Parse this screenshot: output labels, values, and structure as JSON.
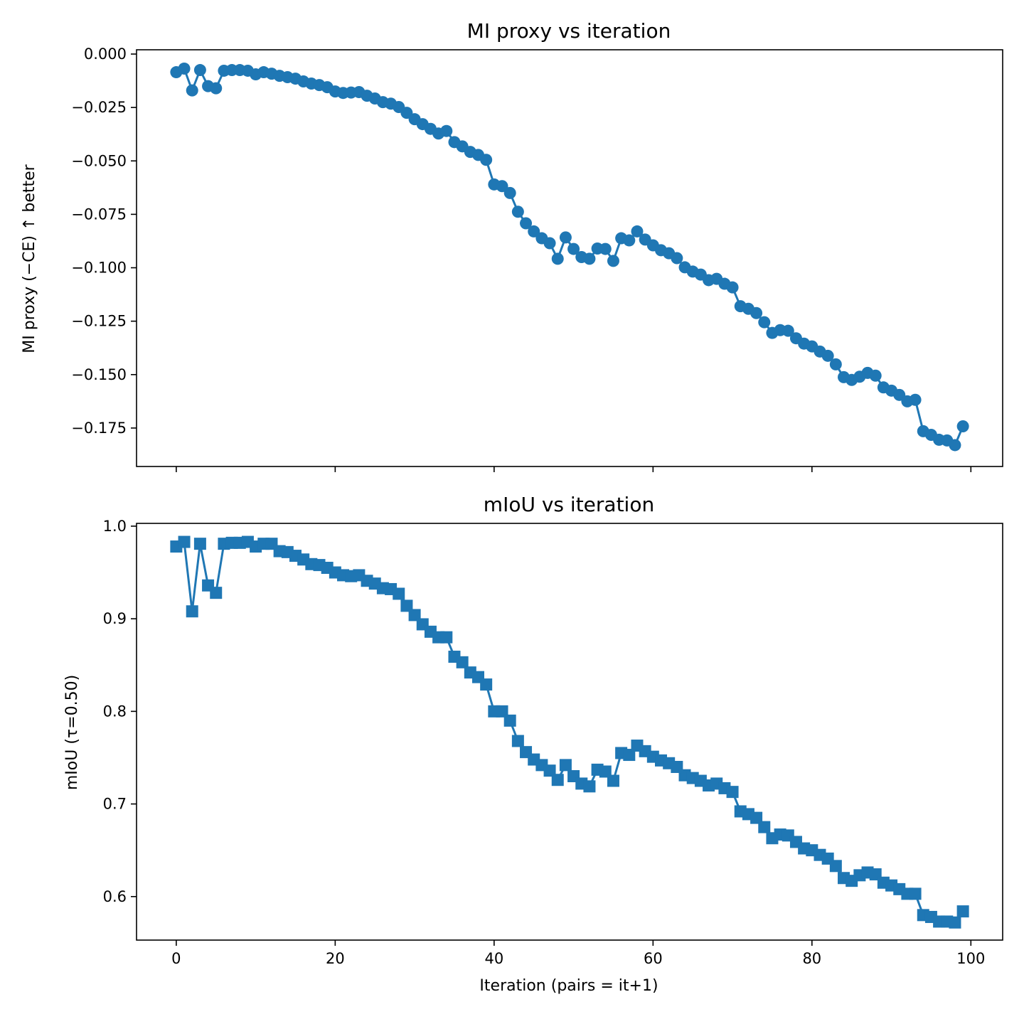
{
  "colors": {
    "series": "#1f77b4",
    "axes": "#000000",
    "background": "#ffffff"
  },
  "chart_data": [
    {
      "type": "line",
      "title": "MI proxy vs iteration",
      "xlabel": "",
      "ylabel": "MI proxy (−CE) ↑ better",
      "marker": "circle",
      "grid": false,
      "xlim": [
        -5,
        104
      ],
      "ylim": [
        -0.193,
        0.002
      ],
      "xticks": [
        0,
        20,
        40,
        60,
        80,
        100
      ],
      "xtick_labels_visible": false,
      "yticks": [
        0.0,
        -0.025,
        -0.05,
        -0.075,
        -0.1,
        -0.125,
        -0.15,
        -0.175
      ],
      "ytick_labels": [
        "0.000",
        "−0.025",
        "−0.050",
        "−0.075",
        "−0.100",
        "−0.125",
        "−0.150",
        "−0.175"
      ],
      "x": [
        0,
        1,
        2,
        3,
        4,
        5,
        6,
        7,
        8,
        9,
        10,
        11,
        12,
        13,
        14,
        15,
        16,
        17,
        18,
        19,
        20,
        21,
        22,
        23,
        24,
        25,
        26,
        27,
        28,
        29,
        30,
        31,
        32,
        33,
        34,
        35,
        36,
        37,
        38,
        39,
        40,
        41,
        42,
        43,
        44,
        45,
        46,
        47,
        48,
        49,
        50,
        51,
        52,
        53,
        54,
        55,
        56,
        57,
        58,
        59,
        60,
        61,
        62,
        63,
        64,
        65,
        66,
        67,
        68,
        69,
        70,
        71,
        72,
        73,
        74,
        75,
        76,
        77,
        78,
        79,
        80,
        81,
        82,
        83,
        84,
        85,
        86,
        87,
        88,
        89,
        90,
        91,
        92,
        93,
        94,
        95,
        96,
        97,
        98,
        99
      ],
      "y": [
        -0.0085,
        -0.0068,
        -0.017,
        -0.0075,
        -0.015,
        -0.016,
        -0.0078,
        -0.0075,
        -0.0075,
        -0.0078,
        -0.0095,
        -0.0085,
        -0.0092,
        -0.0102,
        -0.0108,
        -0.0115,
        -0.0128,
        -0.0138,
        -0.0145,
        -0.0155,
        -0.0175,
        -0.0182,
        -0.018,
        -0.0178,
        -0.0195,
        -0.0208,
        -0.0225,
        -0.0232,
        -0.0248,
        -0.0275,
        -0.0305,
        -0.0328,
        -0.035,
        -0.0372,
        -0.036,
        -0.0412,
        -0.0432,
        -0.0458,
        -0.0472,
        -0.0495,
        -0.061,
        -0.0618,
        -0.065,
        -0.0738,
        -0.0792,
        -0.083,
        -0.0862,
        -0.0885,
        -0.0958,
        -0.0858,
        -0.0912,
        -0.095,
        -0.0958,
        -0.091,
        -0.0912,
        -0.0968,
        -0.0862,
        -0.0872,
        -0.083,
        -0.0868,
        -0.0895,
        -0.0918,
        -0.0932,
        -0.0955,
        -0.0998,
        -0.1018,
        -0.1032,
        -0.1058,
        -0.1052,
        -0.1075,
        -0.1092,
        -0.118,
        -0.1192,
        -0.1212,
        -0.1255,
        -0.1305,
        -0.1292,
        -0.1295,
        -0.133,
        -0.1355,
        -0.1368,
        -0.1392,
        -0.1412,
        -0.1452,
        -0.1512,
        -0.1525,
        -0.151,
        -0.1492,
        -0.1505,
        -0.156,
        -0.1575,
        -0.1595,
        -0.1625,
        -0.1618,
        -0.1765,
        -0.1782,
        -0.1805,
        -0.1808,
        -0.183,
        -0.1742
      ]
    },
    {
      "type": "line",
      "title": "mIoU vs iteration",
      "xlabel": "Iteration (pairs = it+1)",
      "ylabel": "mIoU (τ=0.50)",
      "marker": "square",
      "grid": false,
      "xlim": [
        -5,
        104
      ],
      "ylim": [
        0.553,
        1.003
      ],
      "xticks": [
        0,
        20,
        40,
        60,
        80,
        100
      ],
      "xtick_labels": [
        "0",
        "20",
        "40",
        "60",
        "80",
        "100"
      ],
      "yticks": [
        1.0,
        0.9,
        0.8,
        0.7,
        0.6
      ],
      "ytick_labels": [
        "1.0",
        "0.9",
        "0.8",
        "0.7",
        "0.6"
      ],
      "x": [
        0,
        1,
        2,
        3,
        4,
        5,
        6,
        7,
        8,
        9,
        10,
        11,
        12,
        13,
        14,
        15,
        16,
        17,
        18,
        19,
        20,
        21,
        22,
        23,
        24,
        25,
        26,
        27,
        28,
        29,
        30,
        31,
        32,
        33,
        34,
        35,
        36,
        37,
        38,
        39,
        40,
        41,
        42,
        43,
        44,
        45,
        46,
        47,
        48,
        49,
        50,
        51,
        52,
        53,
        54,
        55,
        56,
        57,
        58,
        59,
        60,
        61,
        62,
        63,
        64,
        65,
        66,
        67,
        68,
        69,
        70,
        71,
        72,
        73,
        74,
        75,
        76,
        77,
        78,
        79,
        80,
        81,
        82,
        83,
        84,
        85,
        86,
        87,
        88,
        89,
        90,
        91,
        92,
        93,
        94,
        95,
        96,
        97,
        98,
        99
      ],
      "y": [
        0.978,
        0.983,
        0.908,
        0.981,
        0.936,
        0.928,
        0.981,
        0.982,
        0.982,
        0.983,
        0.978,
        0.981,
        0.981,
        0.973,
        0.972,
        0.968,
        0.964,
        0.959,
        0.958,
        0.955,
        0.95,
        0.947,
        0.946,
        0.947,
        0.941,
        0.938,
        0.933,
        0.932,
        0.927,
        0.914,
        0.904,
        0.894,
        0.886,
        0.88,
        0.88,
        0.859,
        0.853,
        0.842,
        0.837,
        0.829,
        0.8,
        0.8,
        0.79,
        0.768,
        0.756,
        0.748,
        0.742,
        0.736,
        0.726,
        0.742,
        0.73,
        0.722,
        0.719,
        0.737,
        0.735,
        0.725,
        0.755,
        0.753,
        0.763,
        0.757,
        0.751,
        0.747,
        0.744,
        0.74,
        0.731,
        0.728,
        0.725,
        0.72,
        0.722,
        0.717,
        0.713,
        0.692,
        0.689,
        0.685,
        0.675,
        0.663,
        0.667,
        0.666,
        0.659,
        0.652,
        0.65,
        0.645,
        0.641,
        0.633,
        0.62,
        0.617,
        0.623,
        0.626,
        0.624,
        0.615,
        0.612,
        0.608,
        0.603,
        0.603,
        0.58,
        0.578,
        0.573,
        0.573,
        0.572,
        0.584
      ]
    }
  ]
}
